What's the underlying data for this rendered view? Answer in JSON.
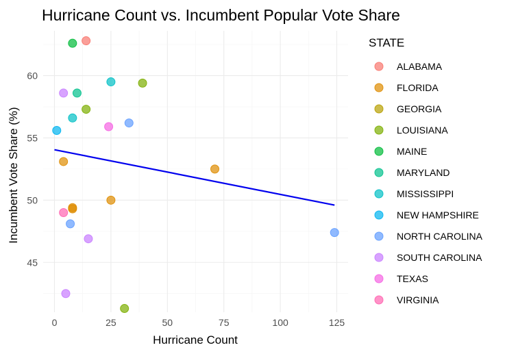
{
  "chart_data": {
    "type": "scatter",
    "title": "Hurricane Count vs. Incumbent Popular Vote Share",
    "xlabel": "Hurricane Count",
    "ylabel": "Incumbent Vote Share (%)",
    "xlim": [
      -5,
      130
    ],
    "ylim": [
      41,
      63.6
    ],
    "x_ticks": [
      0,
      25,
      50,
      75,
      100,
      125
    ],
    "y_ticks": [
      45,
      50,
      55,
      60
    ],
    "grid": true,
    "legend": {
      "title": "STATE",
      "position": "right"
    },
    "series": [
      {
        "name": "ALABAMA",
        "color": "#F8766D",
        "points": [
          {
            "x": 14,
            "y": 62.8
          }
        ]
      },
      {
        "name": "FLORIDA",
        "color": "#DE8C00",
        "points": [
          {
            "x": 4,
            "y": 53.1
          },
          {
            "x": 8,
            "y": 49.4
          },
          {
            "x": 8,
            "y": 49.3
          },
          {
            "x": 25,
            "y": 50.0
          },
          {
            "x": 71,
            "y": 52.5
          }
        ]
      },
      {
        "name": "GEORGIA",
        "color": "#B79F00",
        "points": []
      },
      {
        "name": "LOUISIANA",
        "color": "#7CAE00",
        "points": [
          {
            "x": 14,
            "y": 57.3
          },
          {
            "x": 39,
            "y": 59.4
          },
          {
            "x": 31,
            "y": 41.3
          }
        ]
      },
      {
        "name": "MAINE",
        "color": "#00BA38",
        "points": [
          {
            "x": 8,
            "y": 62.6
          }
        ]
      },
      {
        "name": "MARYLAND",
        "color": "#00C08B",
        "points": [
          {
            "x": 10,
            "y": 58.6
          }
        ]
      },
      {
        "name": "MISSISSIPPI",
        "color": "#00BFC4",
        "points": [
          {
            "x": 25,
            "y": 59.5
          },
          {
            "x": 8,
            "y": 56.6
          }
        ]
      },
      {
        "name": "NEW HAMPSHIRE",
        "color": "#00B4F0",
        "points": [
          {
            "x": 1,
            "y": 55.6
          }
        ]
      },
      {
        "name": "NORTH CAROLINA",
        "color": "#619CFF",
        "points": [
          {
            "x": 33,
            "y": 56.2
          },
          {
            "x": 7,
            "y": 48.1
          },
          {
            "x": 124,
            "y": 47.4
          }
        ]
      },
      {
        "name": "SOUTH CAROLINA",
        "color": "#C77CFF",
        "points": [
          {
            "x": 4,
            "y": 58.6
          },
          {
            "x": 15,
            "y": 46.9
          },
          {
            "x": 5,
            "y": 42.5
          }
        ]
      },
      {
        "name": "TEXAS",
        "color": "#F564E3",
        "points": [
          {
            "x": 24,
            "y": 55.9
          }
        ]
      },
      {
        "name": "VIRGINIA",
        "color": "#FF64B0",
        "points": [
          {
            "x": 4,
            "y": 49.0
          }
        ]
      }
    ],
    "trend_line": {
      "color": "#0000EE",
      "x": [
        0,
        124
      ],
      "y": [
        54.05,
        49.6
      ]
    }
  }
}
